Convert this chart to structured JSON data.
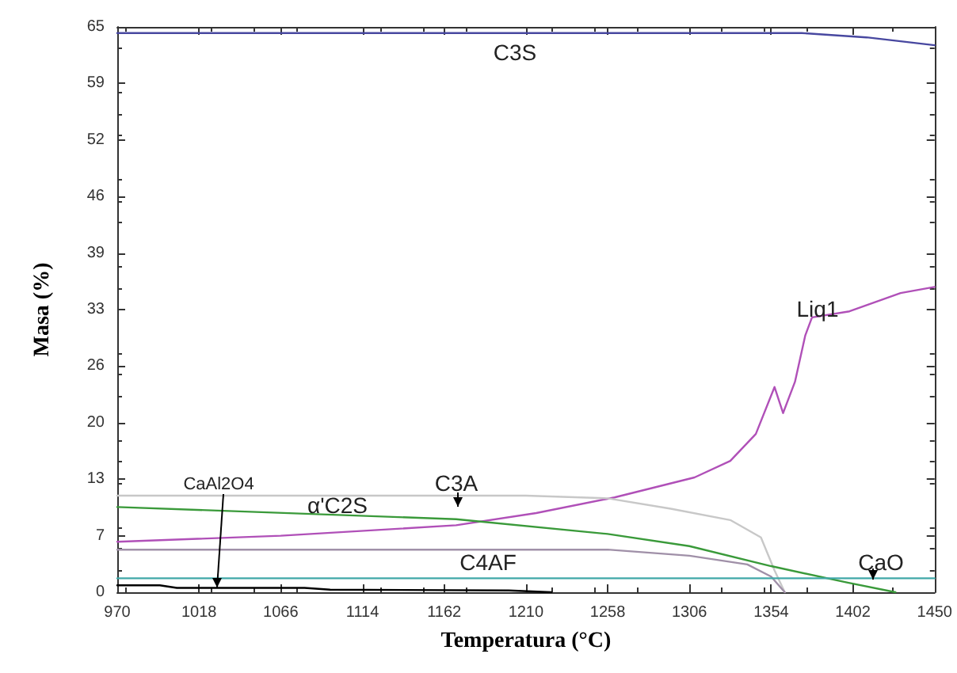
{
  "chart_data": {
    "type": "line",
    "xlabel": "Temperatura (°C)",
    "ylabel": "Masa (%)",
    "xlim": [
      970,
      1450
    ],
    "xticks": [
      970,
      1018,
      1066,
      1114,
      1162,
      1210,
      1258,
      1306,
      1354,
      1402,
      1450
    ],
    "ylim": [
      0,
      65
    ],
    "yticks": [
      0,
      {
        "value": 6.5,
        "label": "7"
      },
      13,
      {
        "value": 19.5,
        "label": "20"
      },
      26,
      {
        "value": 32.5,
        "label": "33"
      },
      39,
      {
        "value": 45.5,
        "label": "46"
      },
      52,
      {
        "value": 58.5,
        "label": "59"
      },
      65
    ],
    "grid": false,
    "marker": "none",
    "line_style": "solid",
    "series": [
      {
        "name": "C3S",
        "color": "#4848a0",
        "x": [
          970,
          1372,
          1410,
          1450
        ],
        "values": [
          64.3,
          64.3,
          63.8,
          62.9
        ]
      },
      {
        "name": "Liq1",
        "color": "#b050b8",
        "x": [
          970,
          1066,
          1169,
          1216,
          1262,
          1309,
          1330,
          1345,
          1356,
          1361,
          1368,
          1374,
          1378,
          1400,
          1430,
          1450
        ],
        "values": [
          5.8,
          6.5,
          7.7,
          9.1,
          10.9,
          13.2,
          15.1,
          18.2,
          23.6,
          20.6,
          24.2,
          29.5,
          31.6,
          32.3,
          34.4,
          35.1
        ]
      },
      {
        "name": "C3A",
        "color": "#c8c8c8",
        "x": [
          970,
          1210,
          1258,
          1295,
          1330,
          1348,
          1356,
          1362
        ],
        "values": [
          11.1,
          11.1,
          10.8,
          9.6,
          8.3,
          6.3,
          2.5,
          0
        ]
      },
      {
        "name": "α'C2S",
        "color": "#3a9a3a",
        "x": [
          970,
          1169,
          1258,
          1306,
          1354,
          1399,
          1427
        ],
        "values": [
          9.8,
          8.4,
          6.7,
          5.3,
          3.0,
          1.1,
          0
        ]
      },
      {
        "name": "C4AF",
        "color": "#a090a8",
        "x": [
          970,
          1258,
          1306,
          1340,
          1354,
          1362
        ],
        "values": [
          4.9,
          4.9,
          4.2,
          3.2,
          1.8,
          0
        ]
      },
      {
        "name": "CaO",
        "color": "#40a8a8",
        "x": [
          970,
          1450
        ],
        "values": [
          1.6,
          1.6
        ]
      },
      {
        "name": "CaAl2O4",
        "color": "#000000",
        "x": [
          970,
          995,
          1005,
          1080,
          1095,
          1200,
          1225
        ],
        "values": [
          0.8,
          0.8,
          0.5,
          0.5,
          0.3,
          0.2,
          0
        ]
      }
    ]
  }
}
